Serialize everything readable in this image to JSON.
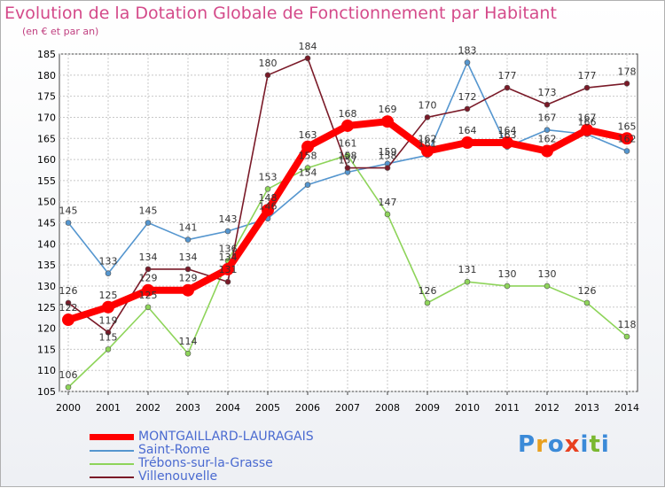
{
  "chart_data": {
    "type": "line",
    "title": "Evolution de la Dotation Globale de Fonctionnement par Habitant",
    "subtitle": "(en € et par an)",
    "categories": [
      "2000",
      "2001",
      "2002",
      "2003",
      "2004",
      "2005",
      "2006",
      "2007",
      "2008",
      "2009",
      "2010",
      "2011",
      "2012",
      "2013",
      "2014"
    ],
    "ylim": [
      105,
      185
    ],
    "yticks": [
      105,
      110,
      115,
      120,
      125,
      130,
      135,
      140,
      145,
      150,
      155,
      160,
      165,
      170,
      175,
      180,
      185
    ],
    "grid": true,
    "legend_position": "bottom-left",
    "series": [
      {
        "name": "Saint-Rome",
        "color": "#5596cf",
        "values": [
          145,
          133,
          145,
          141,
          143,
          146,
          154,
          157,
          159,
          161,
          183,
          163,
          167,
          166,
          162
        ],
        "labels": [
          "145",
          "133",
          "145",
          "141",
          "143",
          "146",
          "154",
          "157",
          "159",
          "161",
          "183",
          "163",
          "167",
          "166",
          "162"
        ]
      },
      {
        "name": "Trébons-sur-la-Grasse",
        "color": "#8ed45a",
        "values": [
          106,
          115,
          125,
          114,
          136,
          153,
          158,
          161,
          147,
          126,
          131,
          130,
          130,
          126,
          118
        ],
        "labels": [
          "106",
          "115",
          "125",
          "114",
          "136",
          "153",
          "158",
          "161",
          "147",
          "126",
          "131",
          "130",
          "130",
          "126",
          "118"
        ]
      },
      {
        "name": "Villenouvelle",
        "color": "#7a1a28",
        "values": [
          126,
          119,
          134,
          134,
          131,
          180,
          184,
          158,
          158,
          170,
          172,
          177,
          173,
          177,
          178
        ],
        "labels": [
          "126",
          "119",
          "134",
          "134",
          "131",
          "180",
          "184",
          "158",
          "158",
          "170",
          "172",
          "177",
          "173",
          "177",
          "178"
        ]
      },
      {
        "name": "MONTGAILLARD-LAURAGAIS",
        "color": "#ff0000",
        "values": [
          122,
          125,
          129,
          129,
          134,
          148,
          163,
          168,
          169,
          162,
          164,
          164,
          162,
          167,
          165
        ],
        "labels": [
          "122",
          "125",
          "129",
          "129",
          "134",
          "148",
          "163",
          "168",
          "169",
          "162",
          "164",
          "164",
          "162",
          "167",
          "165"
        ]
      }
    ],
    "legend": [
      "MONTGAILLARD-LAURAGAIS",
      "Saint-Rome",
      "Trébons-sur-la-Grasse",
      "Villenouvelle"
    ]
  },
  "logo": {
    "text": "Proxiti",
    "letters": [
      "P",
      "r",
      "o",
      "x",
      "i",
      "t",
      "i"
    ],
    "colors": [
      "#3b8ad8",
      "#e8a020",
      "#3b8ad8",
      "#e84020",
      "#3b8ad8",
      "#7ab830",
      "#3b8ad8"
    ]
  }
}
